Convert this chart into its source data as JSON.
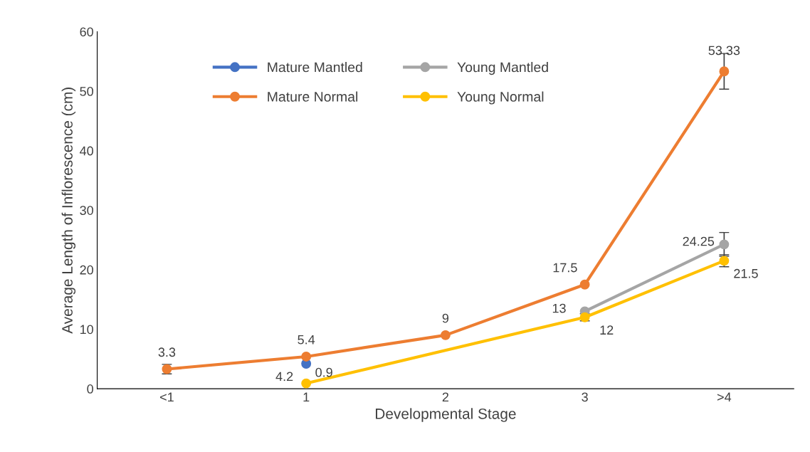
{
  "chart_data": {
    "type": "line",
    "xlabel": "Developmental Stage",
    "ylabel": "Average Length of Inflorescence (cm)",
    "categories": [
      "<1",
      "1",
      "2",
      "3",
      ">4"
    ],
    "series": [
      {
        "name": "Mature Mantled",
        "color": "#4472c4",
        "values": [
          null,
          4.2,
          null,
          null,
          null
        ],
        "errors": [
          null,
          null,
          null,
          null,
          null
        ]
      },
      {
        "name": "Mature Normal",
        "color": "#ed7d31",
        "values": [
          3.3,
          5.4,
          9,
          17.5,
          53.33
        ],
        "errors": [
          0.8,
          null,
          null,
          null,
          3
        ]
      },
      {
        "name": "Young Mantled",
        "color": "#a5a5a5",
        "values": [
          null,
          null,
          null,
          13,
          24.25
        ],
        "errors": [
          null,
          null,
          null,
          null,
          2
        ]
      },
      {
        "name": "Young Normal",
        "color": "#ffc000",
        "values": [
          null,
          0.9,
          null,
          12,
          21.5
        ],
        "errors": [
          null,
          null,
          null,
          0.6,
          1
        ]
      }
    ],
    "data_labels": true,
    "ylim": [
      0,
      60
    ],
    "yticks": [
      0,
      10,
      20,
      30,
      40,
      50,
      60
    ],
    "grid": false,
    "legend": "top left",
    "marker": "circle",
    "line_style": "solid"
  }
}
